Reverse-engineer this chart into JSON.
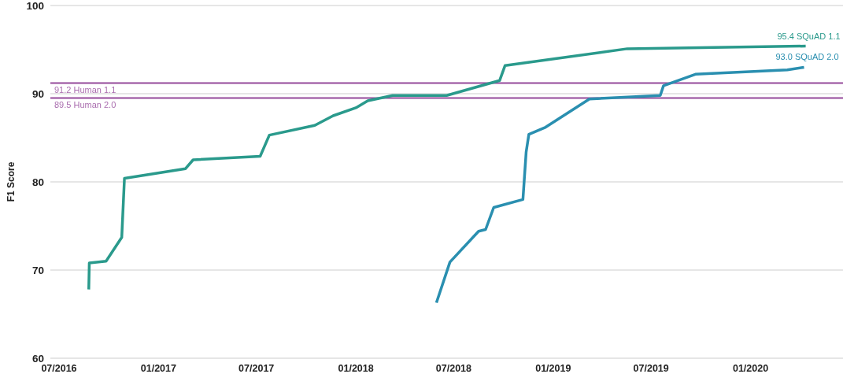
{
  "chart_data": {
    "type": "line",
    "ylabel": "F1 Score",
    "xlim": [
      "2016-06-15",
      "2020-06-20"
    ],
    "xticks": [
      {
        "value": "2016-07-01",
        "label": "07/2016"
      },
      {
        "value": "2017-01-01",
        "label": "01/2017"
      },
      {
        "value": "2017-07-01",
        "label": "07/2017"
      },
      {
        "value": "2018-01-01",
        "label": "01/2018"
      },
      {
        "value": "2018-07-01",
        "label": "07/2018"
      },
      {
        "value": "2019-01-01",
        "label": "01/2019"
      },
      {
        "value": "2019-07-01",
        "label": "07/2019"
      },
      {
        "value": "2020-01-01",
        "label": "01/2020"
      }
    ],
    "ylim": [
      60,
      100
    ],
    "yticks": [
      60,
      70,
      80,
      90,
      100
    ],
    "grid": "y",
    "marker": "none",
    "line_style": "solid",
    "series": [
      {
        "color": "#2a9a8c",
        "x": [
          "2016-08-25",
          "2016-08-26",
          "2016-09-26",
          "2016-10-25",
          "2016-10-30",
          "2017-02-20",
          "2017-03-06",
          "2017-07-08",
          "2017-07-25",
          "2017-10-17",
          "2017-11-20",
          "2018-01-01",
          "2018-01-23",
          "2018-03-10",
          "2018-06-18",
          "2018-09-24",
          "2018-10-04",
          "2019-05-18",
          "2020-04-12"
        ],
        "values": [
          67.8,
          70.8,
          71.0,
          73.7,
          80.4,
          81.5,
          82.5,
          82.9,
          85.3,
          86.4,
          87.5,
          88.4,
          89.2,
          89.8,
          89.8,
          91.5,
          93.2,
          95.1,
          95.4
        ]
      },
      {
        "color": "#2a8fb0",
        "x": [
          "2018-05-30",
          "2018-06-24",
          "2018-08-16",
          "2018-08-29",
          "2018-09-13",
          "2018-11-06",
          "2018-11-12",
          "2018-11-17",
          "2018-12-18",
          "2019-03-09",
          "2019-07-18",
          "2019-07-24",
          "2019-09-21",
          "2020-03-09",
          "2020-04-09"
        ],
        "values": [
          66.3,
          70.9,
          74.4,
          74.6,
          77.1,
          78.0,
          83.4,
          85.4,
          86.2,
          89.4,
          89.8,
          90.9,
          92.2,
          92.7,
          93.0
        ]
      }
    ],
    "ref_lines": [
      {
        "axis": "y",
        "value": 91.2,
        "label": "91.2 Human 1.1",
        "color": "#94489a"
      },
      {
        "axis": "y",
        "value": 89.5,
        "label": "89.5 Human 2.0",
        "color": "#94489a"
      }
    ],
    "annotations": [
      {
        "text": "95.4 SQuAD 1.1",
        "x": "2020-04-12",
        "y": 95.4
      },
      {
        "text": "93.0 SQuAD 2.0",
        "x": "2020-04-09",
        "y": 93.0
      }
    ]
  }
}
